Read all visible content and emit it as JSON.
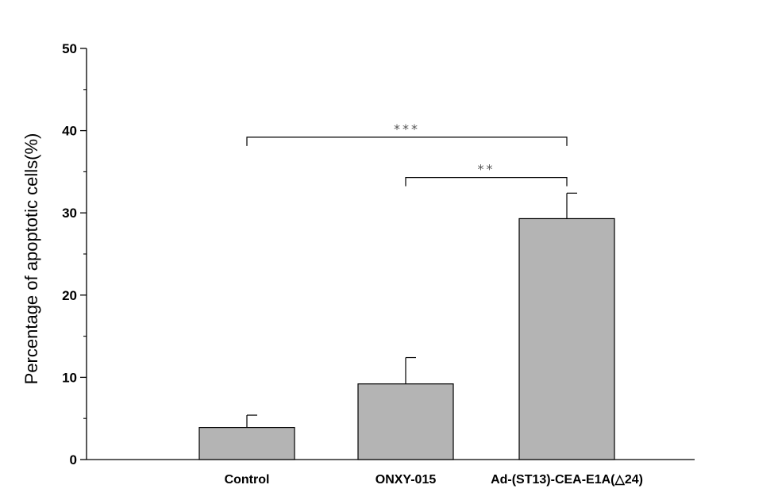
{
  "chart_data": {
    "type": "bar",
    "title": "",
    "xlabel": "",
    "ylabel": "Percentage of apoptotic cells(%)",
    "ylim": [
      0,
      50
    ],
    "yticks_major": [
      0,
      10,
      20,
      30,
      40,
      50
    ],
    "ytick_labels": [
      "0",
      "10",
      "20",
      "30",
      "40",
      "50"
    ],
    "categories": [
      "Control",
      "ONXY-015",
      "Ad-(ST13)-CEA-E1A(△24)"
    ],
    "values": [
      3.9,
      9.2,
      29.3
    ],
    "errors": [
      1.5,
      3.2,
      3.1
    ],
    "bar_color": "#b4b4b4",
    "grid": false,
    "legend": "none",
    "significance": [
      {
        "from": 0,
        "to": 2,
        "label": "***",
        "y": 39.2
      },
      {
        "from": 1,
        "to": 2,
        "label": "**",
        "y": 34.3
      }
    ]
  }
}
